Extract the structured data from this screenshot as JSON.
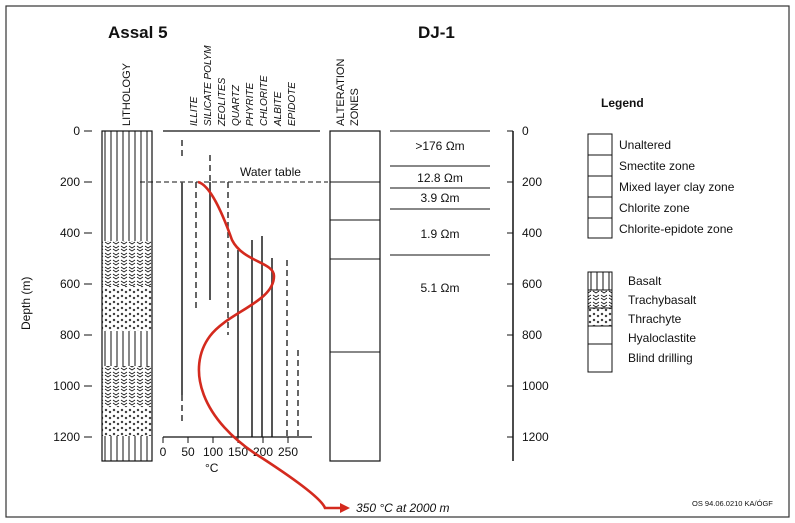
{
  "well_left": "Assal 5",
  "well_right": "DJ-1",
  "lithology_label": "LITHOLOGY",
  "mineral_labels": [
    "ILLITE",
    "SILICATE POLYM",
    "ZEOLITES",
    "QUARTZ",
    "PHYRITE",
    "CHLORITE",
    "ALBITE",
    "EPIDOTE"
  ],
  "alteration_label_lines": [
    "ALTERATION",
    "ZONES"
  ],
  "depth_axis_label": "Depth (m)",
  "depth_ticks": [
    "0",
    "200",
    "400",
    "600",
    "800",
    "1000",
    "1200"
  ],
  "temp_ticks": [
    "0",
    "50",
    "100",
    "150",
    "200",
    "250"
  ],
  "temp_unit": "°C",
  "water_table": "Water table",
  "resistivity": [
    ">176 Ωm",
    "12.8 Ωm",
    "3.9 Ωm",
    "1.9 Ωm",
    "5.1 Ωm"
  ],
  "temp_note": "350 °C at 2000 m",
  "legend_title": "Legend",
  "alteration_legend": [
    "Unaltered",
    "Smectite zone",
    "Mixed layer clay zone",
    "Chlorite zone",
    "Chlorite-epidote zone"
  ],
  "lithology_legend": [
    "Basalt",
    "Trachybasalt",
    "Thrachyte",
    "Hyaloclastite",
    "Blind drilling"
  ],
  "footer_code": "OS 94.06.0210 KA/ÓGF",
  "colors": {
    "temperature_curve": "#d42a1e",
    "ink": "#111111"
  }
}
